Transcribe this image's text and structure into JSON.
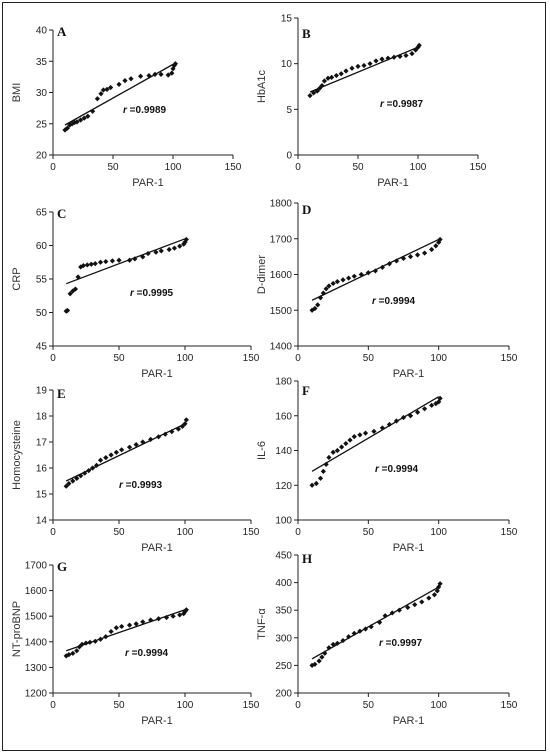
{
  "chart_data": [
    {
      "type": "scatter",
      "panel": "A",
      "xlabel": "PAR-1",
      "ylabel": "BMI",
      "xlim": [
        0,
        150
      ],
      "ylim": [
        20,
        40
      ],
      "xticks": [
        0,
        50,
        100,
        150
      ],
      "yticks": [
        20,
        25,
        30,
        35,
        40
      ],
      "r_prefix": "r",
      "r_value": "=0.9989",
      "fit": [
        [
          10,
          24.8
        ],
        [
          100,
          34.5
        ]
      ],
      "points": [
        [
          10,
          24
        ],
        [
          12,
          24.3
        ],
        [
          14,
          24.8
        ],
        [
          16,
          25
        ],
        [
          18,
          25.2
        ],
        [
          20,
          25.3
        ],
        [
          23,
          25.6
        ],
        [
          26,
          25.9
        ],
        [
          29,
          26.2
        ],
        [
          33,
          27
        ],
        [
          37,
          29
        ],
        [
          40,
          29.8
        ],
        [
          42,
          30.4
        ],
        [
          45,
          30.5
        ],
        [
          48,
          30.8
        ],
        [
          55,
          31.3
        ],
        [
          60,
          31.9
        ],
        [
          65,
          32.2
        ],
        [
          73,
          32.6
        ],
        [
          80,
          32.7
        ],
        [
          85,
          32.9
        ],
        [
          90,
          32.9
        ],
        [
          96,
          32.8
        ],
        [
          99,
          33.1
        ],
        [
          100,
          33.8
        ],
        [
          101,
          34.3
        ],
        [
          102,
          34.6
        ]
      ]
    },
    {
      "type": "scatter",
      "panel": "B",
      "xlabel": "PAR-1",
      "ylabel": "HbA1c",
      "xlim": [
        0,
        150
      ],
      "ylim": [
        0,
        15
      ],
      "xticks": [
        0,
        50,
        100,
        150
      ],
      "yticks": [
        0,
        5,
        10,
        15
      ],
      "r_prefix": "r",
      "r_value": "=0.9987",
      "fit": [
        [
          10,
          6.9
        ],
        [
          100,
          11.8
        ]
      ],
      "points": [
        [
          10,
          6.5
        ],
        [
          13,
          6.8
        ],
        [
          16,
          7
        ],
        [
          18,
          7.3
        ],
        [
          20,
          7.6
        ],
        [
          22,
          8.1
        ],
        [
          25,
          8.4
        ],
        [
          28,
          8.5
        ],
        [
          32,
          8.7
        ],
        [
          36,
          8.9
        ],
        [
          40,
          9.2
        ],
        [
          45,
          9.5
        ],
        [
          50,
          9.7
        ],
        [
          55,
          9.8
        ],
        [
          60,
          10
        ],
        [
          65,
          10.3
        ],
        [
          70,
          10.5
        ],
        [
          75,
          10.6
        ],
        [
          80,
          10.7
        ],
        [
          85,
          10.8
        ],
        [
          90,
          10.9
        ],
        [
          95,
          11.1
        ],
        [
          98,
          11.5
        ],
        [
          100,
          11.8
        ],
        [
          101,
          12
        ]
      ]
    },
    {
      "type": "scatter",
      "panel": "C",
      "xlabel": "PAR-1",
      "ylabel": "CRP",
      "xlim": [
        0,
        150
      ],
      "ylim": [
        45,
        65
      ],
      "xticks": [
        0,
        50,
        100,
        150
      ],
      "yticks": [
        45,
        50,
        55,
        60,
        65
      ],
      "r_prefix": "r",
      "r_value": "=0.9995",
      "fit": [
        [
          10,
          54.3
        ],
        [
          100,
          61
        ]
      ],
      "points": [
        [
          10,
          50.2
        ],
        [
          11,
          50.3
        ],
        [
          13,
          52.8
        ],
        [
          15,
          53.2
        ],
        [
          17,
          53.5
        ],
        [
          19,
          55.3
        ],
        [
          21,
          56.8
        ],
        [
          23,
          57
        ],
        [
          26,
          57.1
        ],
        [
          29,
          57.2
        ],
        [
          32,
          57.3
        ],
        [
          36,
          57.5
        ],
        [
          40,
          57.6
        ],
        [
          45,
          57.7
        ],
        [
          50,
          57.8
        ],
        [
          58,
          57.8
        ],
        [
          62,
          58
        ],
        [
          68,
          58.3
        ],
        [
          72,
          58.8
        ],
        [
          78,
          59
        ],
        [
          82,
          59.2
        ],
        [
          88,
          59.4
        ],
        [
          92,
          59.6
        ],
        [
          96,
          59.9
        ],
        [
          99,
          60.2
        ],
        [
          100,
          60.5
        ],
        [
          101,
          60.9
        ]
      ]
    },
    {
      "type": "scatter",
      "panel": "D",
      "xlabel": "PAR-1",
      "ylabel": "D-dimer",
      "xlim": [
        0,
        150
      ],
      "ylim": [
        1400,
        1800
      ],
      "xticks": [
        0,
        50,
        100,
        150
      ],
      "yticks": [
        1400,
        1500,
        1600,
        1700,
        1800
      ],
      "r_prefix": "r",
      "r_value": "=0.9994",
      "fit": [
        [
          10,
          1528
        ],
        [
          100,
          1698
        ]
      ],
      "points": [
        [
          10,
          1500
        ],
        [
          12,
          1505
        ],
        [
          14,
          1515
        ],
        [
          16,
          1535
        ],
        [
          18,
          1548
        ],
        [
          20,
          1560
        ],
        [
          22,
          1568
        ],
        [
          25,
          1575
        ],
        [
          28,
          1580
        ],
        [
          32,
          1585
        ],
        [
          36,
          1590
        ],
        [
          40,
          1595
        ],
        [
          45,
          1600
        ],
        [
          50,
          1605
        ],
        [
          55,
          1610
        ],
        [
          60,
          1620
        ],
        [
          65,
          1630
        ],
        [
          70,
          1638
        ],
        [
          75,
          1645
        ],
        [
          80,
          1650
        ],
        [
          85,
          1655
        ],
        [
          90,
          1660
        ],
        [
          95,
          1670
        ],
        [
          98,
          1680
        ],
        [
          100,
          1690
        ],
        [
          101,
          1698
        ]
      ]
    },
    {
      "type": "scatter",
      "panel": "E",
      "xlabel": "PAR-1",
      "ylabel": "Homocysteine",
      "xlim": [
        0,
        150
      ],
      "ylim": [
        14,
        19
      ],
      "xticks": [
        0,
        50,
        100,
        150
      ],
      "yticks": [
        14,
        15,
        16,
        17,
        18,
        19
      ],
      "r_prefix": "r",
      "r_value": "=0.9993",
      "fit": [
        [
          10,
          15.5
        ],
        [
          100,
          17.7
        ]
      ],
      "points": [
        [
          10,
          15.3
        ],
        [
          12,
          15.4
        ],
        [
          15,
          15.5
        ],
        [
          18,
          15.6
        ],
        [
          21,
          15.7
        ],
        [
          24,
          15.8
        ],
        [
          27,
          15.9
        ],
        [
          30,
          16
        ],
        [
          33,
          16.1
        ],
        [
          36,
          16.3
        ],
        [
          40,
          16.4
        ],
        [
          44,
          16.5
        ],
        [
          48,
          16.6
        ],
        [
          52,
          16.7
        ],
        [
          58,
          16.8
        ],
        [
          63,
          16.9
        ],
        [
          68,
          17
        ],
        [
          74,
          17.1
        ],
        [
          80,
          17.2
        ],
        [
          85,
          17.3
        ],
        [
          90,
          17.4
        ],
        [
          95,
          17.5
        ],
        [
          98,
          17.6
        ],
        [
          100,
          17.7
        ],
        [
          101,
          17.85
        ]
      ]
    },
    {
      "type": "scatter",
      "panel": "F",
      "xlabel": "PAR-1",
      "ylabel": "IL-6",
      "xlim": [
        0,
        150
      ],
      "ylim": [
        100,
        180
      ],
      "xticks": [
        0,
        50,
        100,
        150
      ],
      "yticks": [
        100,
        120,
        140,
        160,
        180
      ],
      "r_prefix": "r",
      "r_value": "=0.9994",
      "fit": [
        [
          10,
          128
        ],
        [
          100,
          171
        ]
      ],
      "points": [
        [
          10,
          120
        ],
        [
          13,
          121
        ],
        [
          16,
          124
        ],
        [
          18,
          128
        ],
        [
          20,
          132
        ],
        [
          22,
          136
        ],
        [
          25,
          139
        ],
        [
          28,
          140
        ],
        [
          31,
          142
        ],
        [
          34,
          144
        ],
        [
          37,
          146
        ],
        [
          40,
          148
        ],
        [
          44,
          149
        ],
        [
          48,
          150
        ],
        [
          54,
          151
        ],
        [
          60,
          153
        ],
        [
          65,
          155
        ],
        [
          70,
          157
        ],
        [
          75,
          159
        ],
        [
          80,
          160
        ],
        [
          85,
          162
        ],
        [
          90,
          164
        ],
        [
          95,
          166
        ],
        [
          98,
          167
        ],
        [
          100,
          168
        ],
        [
          101,
          170
        ]
      ]
    },
    {
      "type": "scatter",
      "panel": "G",
      "xlabel": "PAR-1",
      "ylabel": "NT-proBNP",
      "xlim": [
        0,
        150
      ],
      "ylim": [
        1200,
        1700
      ],
      "xticks": [
        0,
        50,
        100,
        150
      ],
      "yticks": [
        1200,
        1300,
        1400,
        1500,
        1600,
        1700
      ],
      "r_prefix": "r",
      "r_value": "=0.9994",
      "fit": [
        [
          10,
          1365
        ],
        [
          100,
          1525
        ]
      ],
      "points": [
        [
          10,
          1345
        ],
        [
          12,
          1350
        ],
        [
          15,
          1355
        ],
        [
          18,
          1365
        ],
        [
          20,
          1380
        ],
        [
          22,
          1390
        ],
        [
          25,
          1395
        ],
        [
          28,
          1398
        ],
        [
          32,
          1402
        ],
        [
          36,
          1410
        ],
        [
          40,
          1420
        ],
        [
          44,
          1440
        ],
        [
          48,
          1455
        ],
        [
          52,
          1460
        ],
        [
          58,
          1465
        ],
        [
          63,
          1470
        ],
        [
          68,
          1478
        ],
        [
          74,
          1485
        ],
        [
          80,
          1490
        ],
        [
          86,
          1495
        ],
        [
          91,
          1500
        ],
        [
          96,
          1505
        ],
        [
          99,
          1510
        ],
        [
          100,
          1518
        ],
        [
          101,
          1525
        ]
      ]
    },
    {
      "type": "scatter",
      "panel": "H",
      "xlabel": "PAR-1",
      "ylabel": "TNF-α",
      "xlim": [
        0,
        150
      ],
      "ylim": [
        200,
        450
      ],
      "xticks": [
        0,
        50,
        100,
        150
      ],
      "yticks": [
        200,
        250,
        300,
        350,
        400,
        450
      ],
      "r_prefix": "r",
      "r_value": "=0.9997",
      "fit": [
        [
          10,
          262
        ],
        [
          100,
          392
        ]
      ],
      "points": [
        [
          10,
          250
        ],
        [
          12,
          252
        ],
        [
          15,
          258
        ],
        [
          17,
          265
        ],
        [
          19,
          272
        ],
        [
          22,
          282
        ],
        [
          25,
          288
        ],
        [
          28,
          290
        ],
        [
          32,
          295
        ],
        [
          36,
          302
        ],
        [
          40,
          308
        ],
        [
          44,
          312
        ],
        [
          48,
          316
        ],
        [
          52,
          320
        ],
        [
          58,
          328
        ],
        [
          62,
          340
        ],
        [
          67,
          345
        ],
        [
          72,
          350
        ],
        [
          78,
          355
        ],
        [
          83,
          360
        ],
        [
          88,
          365
        ],
        [
          93,
          372
        ],
        [
          97,
          378
        ],
        [
          99,
          385
        ],
        [
          100,
          392
        ],
        [
          101,
          398
        ]
      ]
    }
  ]
}
